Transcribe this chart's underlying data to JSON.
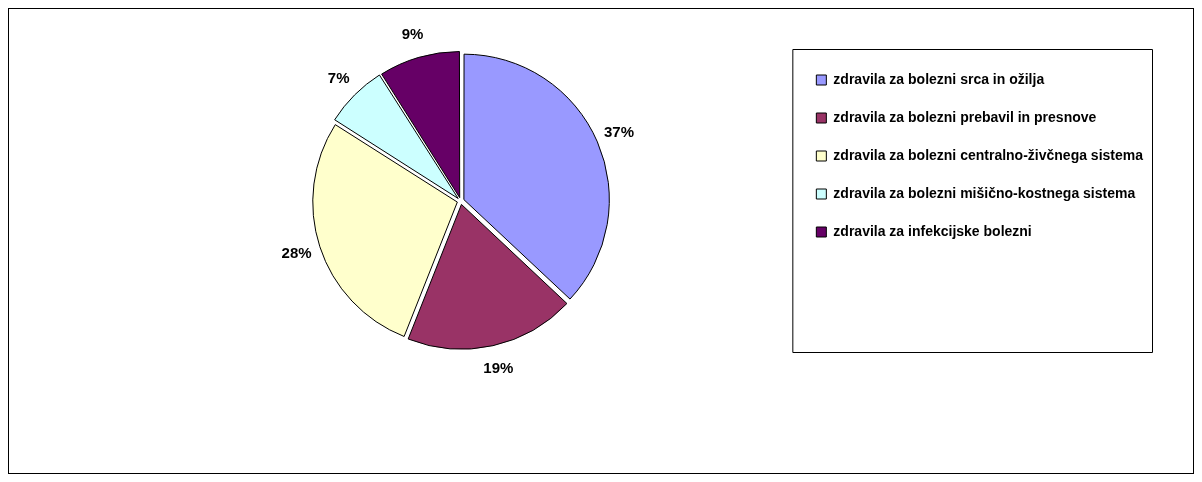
{
  "chart_data": {
    "type": "pie",
    "categories": [
      "zdravila za bolezni srca in ožilja",
      "zdravila za bolezni prebavil in presnove",
      "zdravila za bolezni centralno-živčnega sistema",
      "zdravila za bolezni mišično-kostnega sistema",
      "zdravila za infekcijske bolezni"
    ],
    "values": [
      37,
      19,
      28,
      7,
      9
    ],
    "value_labels": [
      "37%",
      "19%",
      "28%",
      "7%",
      "9%"
    ],
    "colors": [
      "#9999ff",
      "#993366",
      "#ffffcc",
      "#ccffff",
      "#660066"
    ],
    "legend": "right"
  }
}
